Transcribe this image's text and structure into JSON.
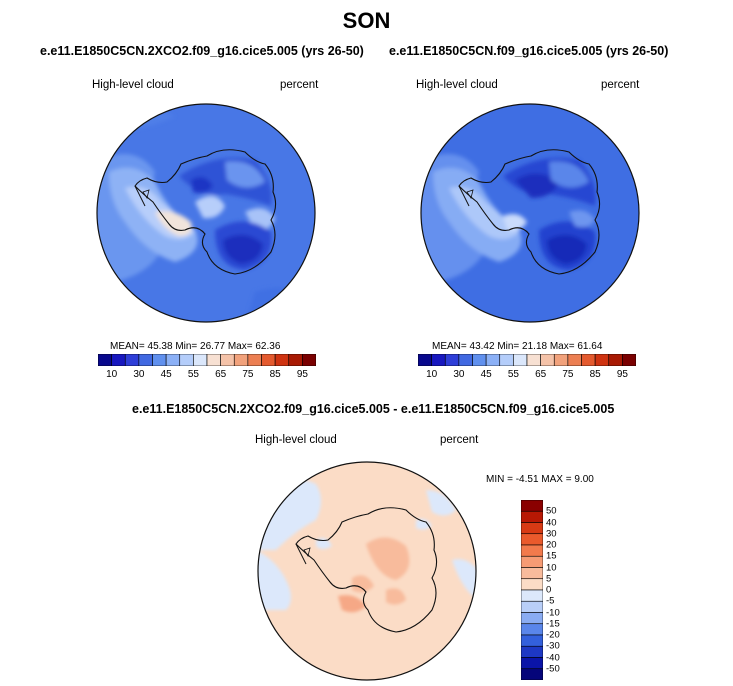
{
  "title": "SON",
  "panels": [
    {
      "run": "e.e11.E1850C5CN.2XCO2.f09_g16.cice5.005 (yrs 26-50)",
      "variable": "High-level cloud",
      "units": "percent",
      "stats_text": "MEAN=  45.38  Min=  26.77  Max=  62.36",
      "stats": {
        "mean": 45.38,
        "min": 26.77,
        "max": 62.36
      }
    },
    {
      "run": "e.e11.E1850C5CN.f09_g16.cice5.005 (yrs 26-50)",
      "variable": "High-level cloud",
      "units": "percent",
      "stats_text": "MEAN=  43.42  Min=  21.18  Max=  61.64",
      "stats": {
        "mean": 43.42,
        "min": 21.18,
        "max": 61.64
      }
    }
  ],
  "abs_colorbar": {
    "labels": [
      "10",
      "30",
      "45",
      "55",
      "65",
      "75",
      "85",
      "95"
    ],
    "colors": [
      "#08088c",
      "#1818bf",
      "#2e3ed8",
      "#4169e1",
      "#6090ee",
      "#8bb0f6",
      "#b4cdfa",
      "#dbe7fb",
      "#f7e0d2",
      "#f5c3a9",
      "#f2a27c",
      "#ec7f52",
      "#e45a2e",
      "#cf3311",
      "#a81a04",
      "#7a0000"
    ]
  },
  "difference": {
    "title": "e.e11.E1850C5CN.2XCO2.f09_g16.cice5.005 - e.e11.E1850C5CN.f09_g16.cice5.005",
    "variable": "High-level cloud",
    "units": "percent",
    "minmax_text": "MIN =  -4.51 MAX =   9.00",
    "stats": {
      "min": -4.51,
      "max": 9.0
    },
    "colorbar": {
      "labels": [
        "50",
        "40",
        "30",
        "20",
        "15",
        "10",
        "5",
        "0",
        "-5",
        "-10",
        "-15",
        "-20",
        "-30",
        "-40",
        "-50"
      ],
      "colors": [
        "#8a0000",
        "#b81804",
        "#d83a14",
        "#ea5a2c",
        "#f27a4c",
        "#f69b74",
        "#f8bb9c",
        "#fbdcc6",
        "#dce8fb",
        "#b9cff8",
        "#8aacf2",
        "#5a86ea",
        "#3360dc",
        "#1d38c4",
        "#0a14a8",
        "#05057a"
      ]
    }
  },
  "colors": {
    "land_outline": "#111111",
    "diff_background": "#fbdcc6"
  }
}
